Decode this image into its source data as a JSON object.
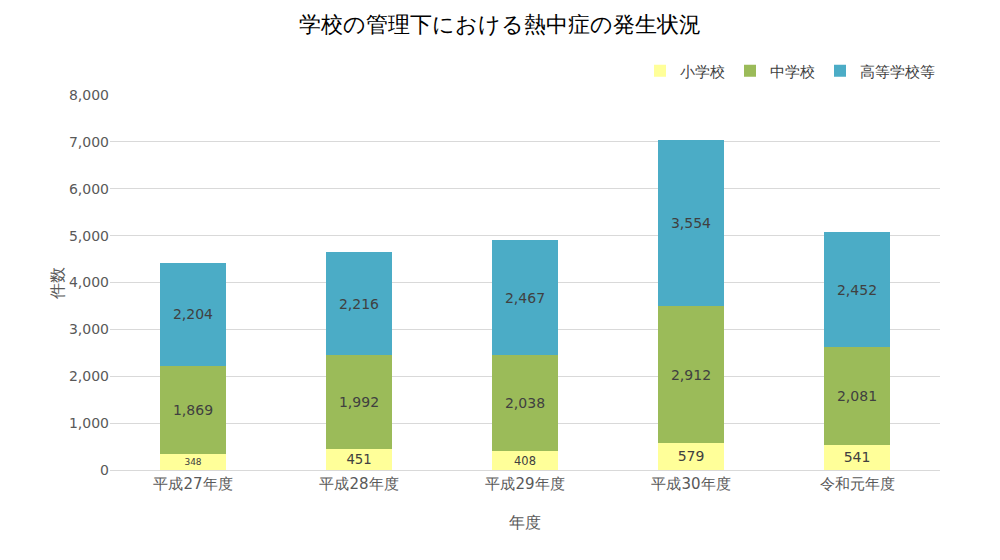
{
  "chart_data": {
    "type": "bar",
    "title": "学校の管理下における熱中症の発生状況",
    "x_label": "年度",
    "y_label": "件数",
    "categories": [
      "平成27年度",
      "平成28年度",
      "平成29年度",
      "平成30年度",
      "令和元年度"
    ],
    "series": [
      {
        "name": "小学校",
        "color": "#ffff99",
        "values": [
          348,
          451,
          408,
          579,
          541
        ],
        "value_labels": [
          "348",
          "451",
          "408",
          "579",
          "541"
        ]
      },
      {
        "name": "中学校",
        "color": "#9bbb59",
        "values": [
          1869,
          1992,
          2038,
          2912,
          2081
        ],
        "value_labels": [
          "1,869",
          "1,992",
          "2,038",
          "2,912",
          "2,081"
        ]
      },
      {
        "name": "高等学校等",
        "color": "#4bacc6",
        "values": [
          2204,
          2216,
          2467,
          3554,
          2452
        ],
        "value_labels": [
          "2,204",
          "2,216",
          "2,467",
          "3,554",
          "2,452"
        ]
      }
    ],
    "ylim": [
      0,
      8000
    ],
    "yticks": [
      0,
      {
        "value": 1000,
        "label": "1,000"
      },
      {
        "value": 2000,
        "label": "2,000"
      },
      {
        "value": 3000,
        "label": "3,000"
      },
      {
        "value": 4000,
        "label": "4,000"
      },
      {
        "value": 5000,
        "label": "5,000"
      },
      {
        "value": 6000,
        "label": "6,000"
      },
      {
        "value": 7000,
        "label": "7,000"
      },
      {
        "value": 8000,
        "label": "8,000"
      }
    ],
    "grid": true,
    "stacked": true,
    "data_labels": true,
    "legend": "top right"
  }
}
